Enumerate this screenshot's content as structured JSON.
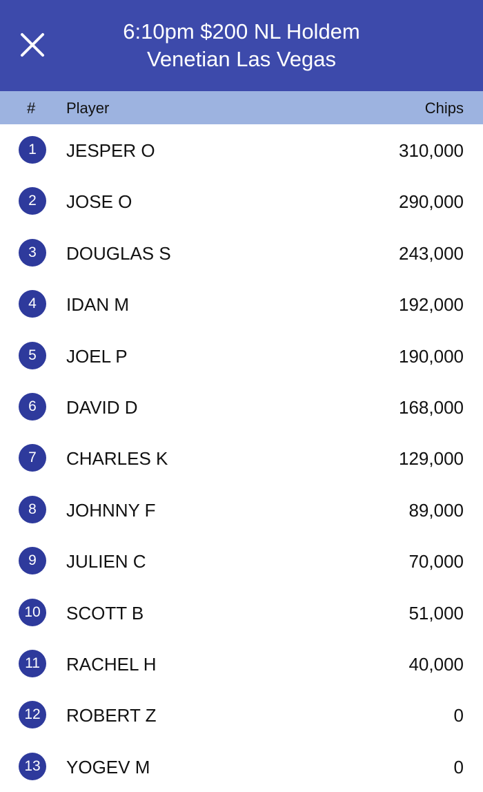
{
  "header": {
    "title_line1": "6:10pm $200 NL Holdem",
    "title_line2": "Venetian Las Vegas",
    "close_icon": "close-icon"
  },
  "columns": {
    "rank": "#",
    "player": "Player",
    "chips": "Chips"
  },
  "colors": {
    "header": "#3d4aab",
    "column_header": "#9db3e0",
    "badge": "#2e3a9c"
  },
  "players": [
    {
      "rank": "1",
      "name": "JESPER O",
      "chips": "310,000"
    },
    {
      "rank": "2",
      "name": "JOSE O",
      "chips": "290,000"
    },
    {
      "rank": "3",
      "name": "DOUGLAS S",
      "chips": "243,000"
    },
    {
      "rank": "4",
      "name": "IDAN M",
      "chips": "192,000"
    },
    {
      "rank": "5",
      "name": "JOEL P",
      "chips": "190,000"
    },
    {
      "rank": "6",
      "name": "DAVID D",
      "chips": "168,000"
    },
    {
      "rank": "7",
      "name": "CHARLES K",
      "chips": "129,000"
    },
    {
      "rank": "8",
      "name": "JOHNNY F",
      "chips": "89,000"
    },
    {
      "rank": "9",
      "name": "JULIEN C",
      "chips": "70,000"
    },
    {
      "rank": "10",
      "name": "SCOTT B",
      "chips": "51,000"
    },
    {
      "rank": "11",
      "name": "RACHEL H",
      "chips": "40,000"
    },
    {
      "rank": "12",
      "name": "ROBERT Z",
      "chips": "0"
    },
    {
      "rank": "13",
      "name": "YOGEV M",
      "chips": "0"
    }
  ]
}
